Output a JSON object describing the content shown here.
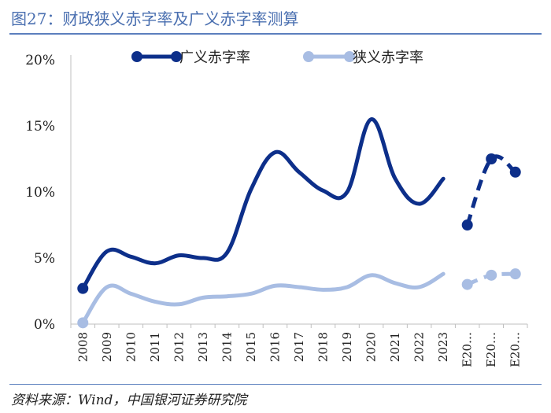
{
  "header": {
    "title": "图27：财政狭义赤字率及广义赤字率测算"
  },
  "footer": {
    "source": "资料来源：Wind，中国银河证券研究院"
  },
  "colors": {
    "broad": "#0d2f8a",
    "narrow": "#a8bde3",
    "axis": "#bfbfbf",
    "title": "#4a6fb0"
  },
  "chart_data": {
    "type": "line",
    "categories": [
      "2008",
      "2009",
      "2010",
      "2011",
      "2012",
      "2013",
      "2014",
      "2015",
      "2016",
      "2017",
      "2018",
      "2019",
      "2020",
      "2021",
      "2022",
      "2023",
      "E20…",
      "E20…",
      "E20…"
    ],
    "ylim": [
      0,
      20
    ],
    "yticks": [
      "0%",
      "5%",
      "10%",
      "15%",
      "20%"
    ],
    "legend_position": "top",
    "series": [
      {
        "name": "广义赤字率",
        "key": "broad",
        "values": [
          2.7,
          5.5,
          5.1,
          4.6,
          5.2,
          5.0,
          5.4,
          10.2,
          13.0,
          11.5,
          10.1,
          10.0,
          15.5,
          11.0,
          9.1,
          11.0,
          7.5,
          12.5,
          11.5
        ],
        "markers": [
          0,
          16,
          17,
          18
        ],
        "dashed_from": 16
      },
      {
        "name": "狭义赤字率",
        "key": "narrow",
        "values": [
          0.1,
          2.8,
          2.3,
          1.7,
          1.5,
          2.0,
          2.1,
          2.3,
          2.9,
          2.8,
          2.6,
          2.8,
          3.7,
          3.1,
          2.8,
          3.8,
          3.0,
          3.7,
          3.8
        ],
        "markers": [
          0,
          16,
          17,
          18
        ],
        "dashed_from": 16
      }
    ]
  }
}
